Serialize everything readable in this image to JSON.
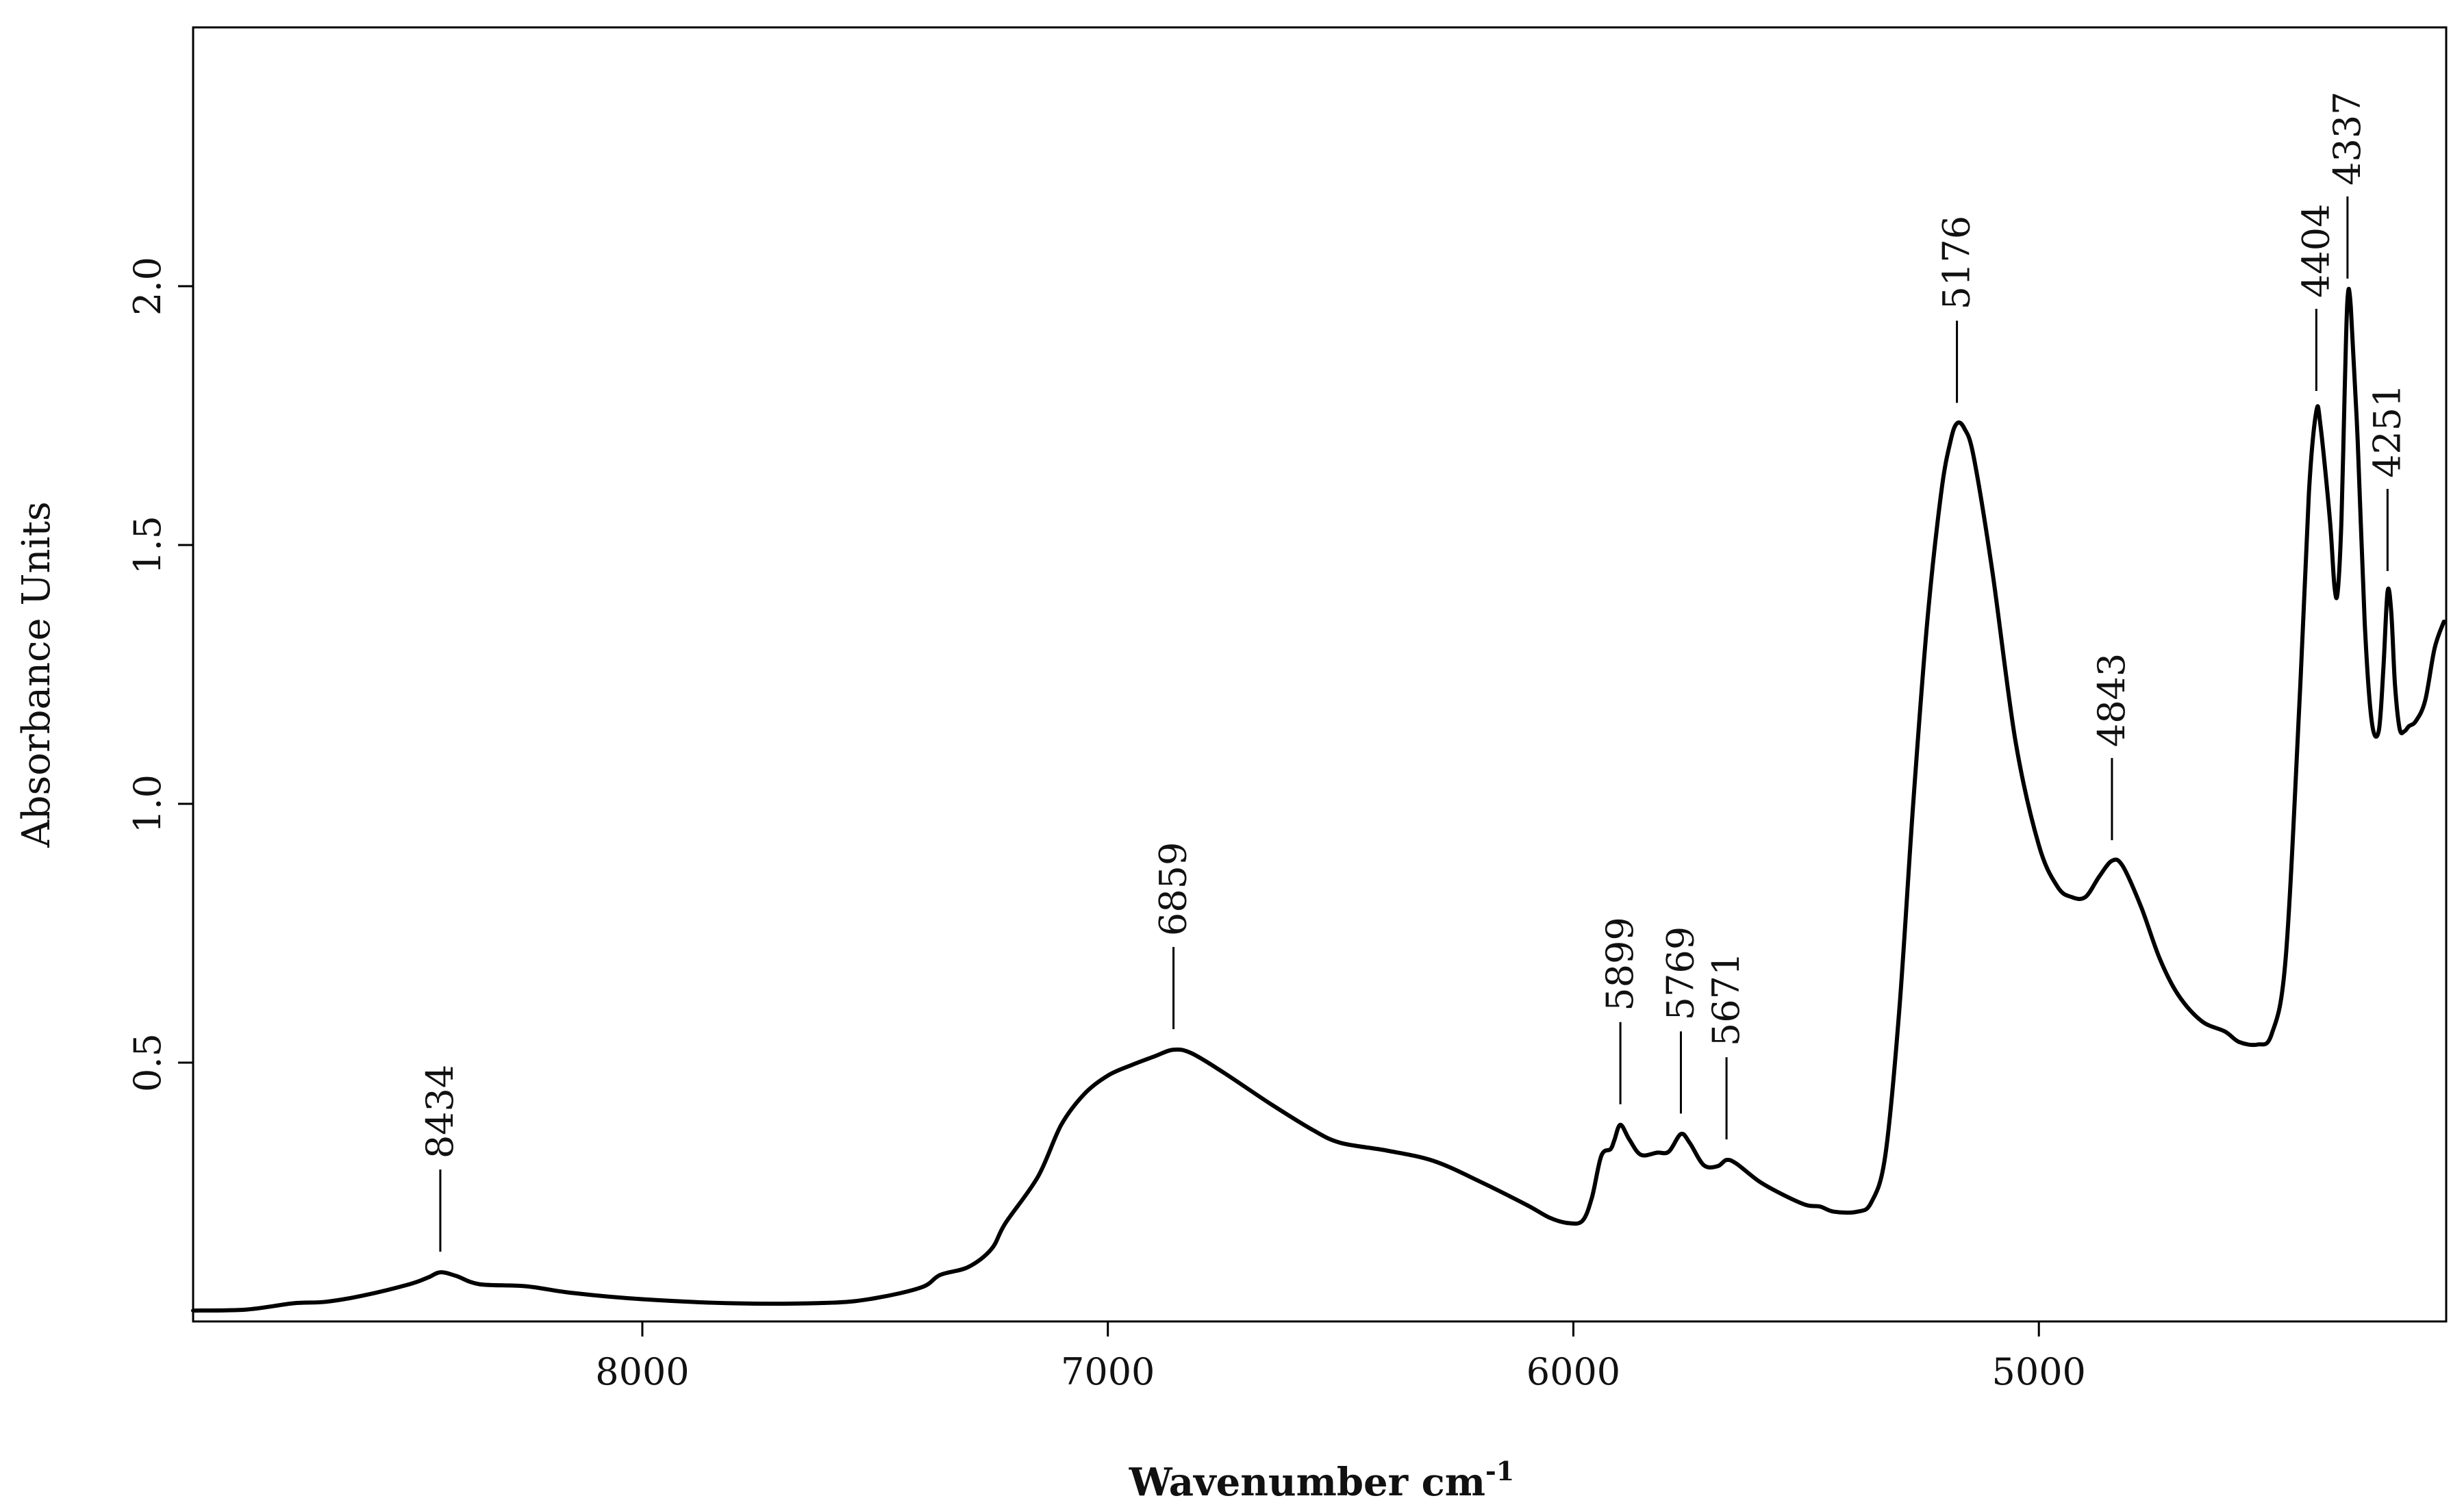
{
  "chart_data": {
    "type": "line",
    "title": "",
    "xlabel": "Wavenumber cm",
    "xlabel_superscript": "-1",
    "ylabel": "Absorbance Units",
    "xlim": [
      8965,
      4125
    ],
    "ylim": [
      0.0,
      2.5
    ],
    "x_ticks": [
      8000,
      7000,
      6000,
      5000
    ],
    "x_tick_labels": [
      "8000",
      "7000",
      "6000",
      "5000"
    ],
    "y_ticks": [
      0.5,
      1.0,
      1.5,
      2.0
    ],
    "y_tick_labels": [
      "0.5",
      "1.0",
      "1.5",
      "2.0"
    ],
    "grid": false,
    "line_color": "#000000",
    "series": [
      {
        "name": "spectrum",
        "points": [
          [
            8965,
            0.021
          ],
          [
            8850,
            0.023
          ],
          [
            8750,
            0.035
          ],
          [
            8680,
            0.038
          ],
          [
            8600,
            0.05
          ],
          [
            8500,
            0.072
          ],
          [
            8460,
            0.085
          ],
          [
            8434,
            0.095
          ],
          [
            8400,
            0.088
          ],
          [
            8350,
            0.072
          ],
          [
            8250,
            0.068
          ],
          [
            8150,
            0.055
          ],
          [
            8000,
            0.043
          ],
          [
            7800,
            0.035
          ],
          [
            7600,
            0.036
          ],
          [
            7500,
            0.045
          ],
          [
            7400,
            0.066
          ],
          [
            7360,
            0.09
          ],
          [
            7300,
            0.105
          ],
          [
            7250,
            0.14
          ],
          [
            7220,
            0.19
          ],
          [
            7150,
            0.28
          ],
          [
            7100,
            0.38
          ],
          [
            7050,
            0.44
          ],
          [
            7000,
            0.475
          ],
          [
            6950,
            0.495
          ],
          [
            6900,
            0.512
          ],
          [
            6859,
            0.525
          ],
          [
            6820,
            0.518
          ],
          [
            6750,
            0.48
          ],
          [
            6650,
            0.42
          ],
          [
            6560,
            0.37
          ],
          [
            6500,
            0.345
          ],
          [
            6400,
            0.33
          ],
          [
            6300,
            0.31
          ],
          [
            6200,
            0.27
          ],
          [
            6100,
            0.225
          ],
          [
            6050,
            0.2
          ],
          [
            6010,
            0.19
          ],
          [
            5980,
            0.195
          ],
          [
            5960,
            0.24
          ],
          [
            5940,
            0.32
          ],
          [
            5920,
            0.333
          ],
          [
            5912,
            0.35
          ],
          [
            5899,
            0.38
          ],
          [
            5880,
            0.352
          ],
          [
            5855,
            0.322
          ],
          [
            5820,
            0.326
          ],
          [
            5795,
            0.328
          ],
          [
            5769,
            0.362
          ],
          [
            5750,
            0.345
          ],
          [
            5720,
            0.302
          ],
          [
            5690,
            0.3
          ],
          [
            5671,
            0.312
          ],
          [
            5650,
            0.305
          ],
          [
            5600,
            0.27
          ],
          [
            5550,
            0.245
          ],
          [
            5500,
            0.225
          ],
          [
            5470,
            0.222
          ],
          [
            5440,
            0.212
          ],
          [
            5390,
            0.212
          ],
          [
            5360,
            0.23
          ],
          [
            5330,
            0.32
          ],
          [
            5300,
            0.6
          ],
          [
            5270,
            1.0
          ],
          [
            5240,
            1.35
          ],
          [
            5210,
            1.6
          ],
          [
            5190,
            1.7
          ],
          [
            5176,
            1.735
          ],
          [
            5160,
            1.725
          ],
          [
            5140,
            1.67
          ],
          [
            5100,
            1.45
          ],
          [
            5050,
            1.12
          ],
          [
            5000,
            0.92
          ],
          [
            4960,
            0.84
          ],
          [
            4930,
            0.82
          ],
          [
            4900,
            0.82
          ],
          [
            4870,
            0.86
          ],
          [
            4843,
            0.89
          ],
          [
            4820,
            0.88
          ],
          [
            4780,
            0.8
          ],
          [
            4740,
            0.7
          ],
          [
            4700,
            0.63
          ],
          [
            4650,
            0.58
          ],
          [
            4600,
            0.56
          ],
          [
            4570,
            0.54
          ],
          [
            4530,
            0.535
          ],
          [
            4500,
            0.555
          ],
          [
            4470,
            0.7
          ],
          [
            4440,
            1.2
          ],
          [
            4420,
            1.6
          ],
          [
            4404,
            1.758
          ],
          [
            4395,
            1.73
          ],
          [
            4375,
            1.55
          ],
          [
            4365,
            1.42
          ],
          [
            4358,
            1.41
          ],
          [
            4350,
            1.55
          ],
          [
            4343,
            1.8
          ],
          [
            4337,
            1.975
          ],
          [
            4330,
            1.96
          ],
          [
            4315,
            1.7
          ],
          [
            4300,
            1.35
          ],
          [
            4285,
            1.16
          ],
          [
            4270,
            1.14
          ],
          [
            4260,
            1.26
          ],
          [
            4251,
            1.41
          ],
          [
            4243,
            1.37
          ],
          [
            4235,
            1.23
          ],
          [
            4225,
            1.145
          ],
          [
            4215,
            1.14
          ],
          [
            4205,
            1.15
          ],
          [
            4190,
            1.16
          ],
          [
            4170,
            1.2
          ],
          [
            4150,
            1.3
          ],
          [
            4130,
            1.352
          ]
        ]
      }
    ],
    "annotations": [
      {
        "label": "8434",
        "x": 8434,
        "y": 0.095
      },
      {
        "label": "6859",
        "x": 6859,
        "y": 0.525
      },
      {
        "label": "5899",
        "x": 5899,
        "y": 0.38
      },
      {
        "label": "5769",
        "x": 5769,
        "y": 0.362
      },
      {
        "label": "5671",
        "x": 5671,
        "y": 0.312
      },
      {
        "label": "5176",
        "x": 5176,
        "y": 1.735
      },
      {
        "label": "4843",
        "x": 4843,
        "y": 0.89
      },
      {
        "label": "4404",
        "x": 4404,
        "y": 1.758
      },
      {
        "label": "4337",
        "x": 4337,
        "y": 1.975
      },
      {
        "label": "4251",
        "x": 4251,
        "y": 1.41
      }
    ]
  }
}
